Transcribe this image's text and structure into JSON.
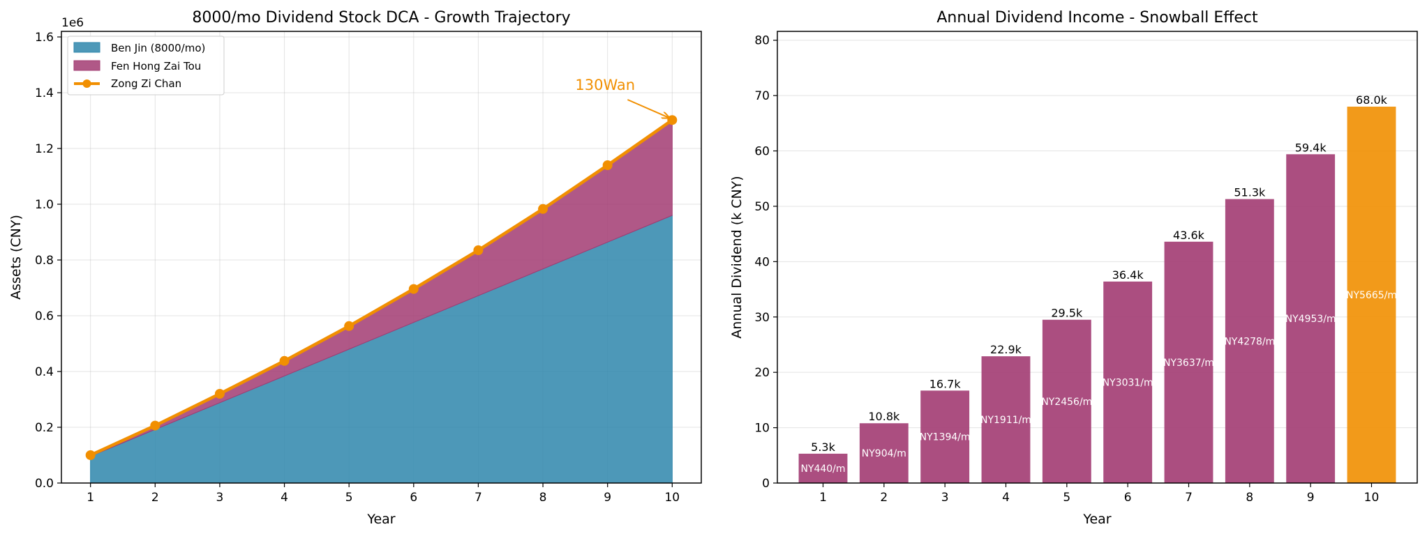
{
  "chart_data": [
    {
      "type": "area",
      "title": "8000/mo Dividend Stock DCA - Growth Trajectory",
      "xlabel": "Year",
      "ylabel": "Assets (CNY)",
      "y_offset_label": "1e6",
      "xlim": [
        0.55,
        10.45
      ],
      "ylim": [
        0,
        1.62
      ],
      "x_ticks": [
        1,
        2,
        3,
        4,
        5,
        6,
        7,
        8,
        9,
        10
      ],
      "y_ticks": [
        0.0,
        0.2,
        0.4,
        0.6,
        0.8,
        1.0,
        1.2,
        1.4,
        1.6
      ],
      "y_tick_labels": [
        "0.0",
        "0.2",
        "0.4",
        "0.6",
        "0.8",
        "1.0",
        "1.2",
        "1.4",
        "1.6"
      ],
      "grid": true,
      "legend_position": "upper-left",
      "x": [
        1,
        2,
        3,
        4,
        5,
        6,
        7,
        8,
        9,
        10
      ],
      "series": [
        {
          "name": "Ben Jin (8000/mo)",
          "kind": "area",
          "color": "#2E86AB",
          "values": [
            0.096,
            0.192,
            0.288,
            0.384,
            0.48,
            0.576,
            0.672,
            0.768,
            0.864,
            0.96
          ]
        },
        {
          "name": "Fen Hong Zai Tou",
          "kind": "area",
          "color": "#A23B72",
          "values": [
            0.004,
            0.014,
            0.032,
            0.054,
            0.083,
            0.12,
            0.163,
            0.215,
            0.276,
            0.342
          ]
        },
        {
          "name": "Zong Zi Chan",
          "kind": "line",
          "color": "#F18F01",
          "values": [
            0.1,
            0.206,
            0.32,
            0.438,
            0.563,
            0.696,
            0.835,
            0.983,
            1.14,
            1.302
          ]
        }
      ],
      "annotation": {
        "text": "130Wan",
        "x": 10,
        "y": 1.302,
        "text_x": 8.5,
        "text_y": 1.41,
        "color": "#F18F01"
      }
    },
    {
      "type": "bar",
      "title": "Annual Dividend Income - Snowball Effect",
      "xlabel": "Year",
      "ylabel": "Annual Dividend (k CNY)",
      "xlim": [
        0.25,
        10.75
      ],
      "ylim": [
        0,
        81.6
      ],
      "y_ticks": [
        0,
        10,
        20,
        30,
        40,
        50,
        60,
        70,
        80
      ],
      "grid": true,
      "categories": [
        "1",
        "2",
        "3",
        "4",
        "5",
        "6",
        "7",
        "8",
        "9",
        "10"
      ],
      "values": [
        5.3,
        10.8,
        16.7,
        22.9,
        29.5,
        36.4,
        43.6,
        51.3,
        59.4,
        68.0
      ],
      "value_labels": [
        "5.3k",
        "10.8k",
        "16.7k",
        "22.9k",
        "29.5k",
        "36.4k",
        "43.6k",
        "51.3k",
        "59.4k",
        "68.0k"
      ],
      "inner_labels": [
        "NY440/m",
        "NY904/m",
        "NY1394/m",
        "NY1911/m",
        "NY2456/m",
        "NY3031/m",
        "NY3637/m",
        "NY4278/m",
        "NY4953/m",
        "NY5665/m"
      ],
      "bar_color": "#A23B72",
      "highlight_color": "#F18F01",
      "highlight_index": 9
    }
  ]
}
